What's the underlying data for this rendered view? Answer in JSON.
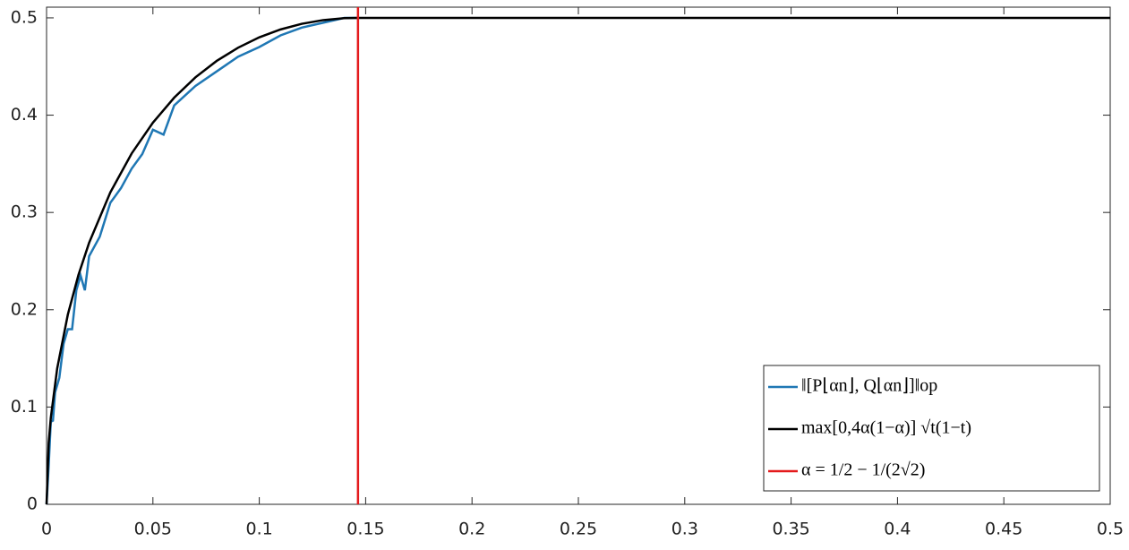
{
  "chart_data": {
    "type": "line",
    "xlim": [
      0,
      0.5
    ],
    "ylim": [
      0,
      0.511
    ],
    "xticks": [
      0,
      0.05,
      0.1,
      0.15,
      0.2,
      0.25,
      0.3,
      0.35,
      0.4,
      0.45,
      0.5
    ],
    "yticks": [
      0,
      0.1,
      0.2,
      0.3,
      0.4,
      0.5
    ],
    "legend": "lower-right",
    "series": [
      {
        "name": "‖[P⌊αn⌋, Q⌊αn⌋]‖op",
        "color": "#1f77b4",
        "x": [
          0,
          0.001,
          0.002,
          0.003,
          0.004,
          0.006,
          0.008,
          0.01,
          0.012,
          0.014,
          0.016,
          0.018,
          0.02,
          0.025,
          0.03,
          0.035,
          0.04,
          0.045,
          0.05,
          0.055,
          0.06,
          0.065,
          0.07,
          0.08,
          0.09,
          0.1,
          0.11,
          0.12,
          0.13,
          0.14,
          0.1464
        ],
        "values": [
          0,
          0.04,
          0.085,
          0.086,
          0.115,
          0.13,
          0.165,
          0.18,
          0.18,
          0.22,
          0.235,
          0.22,
          0.255,
          0.275,
          0.31,
          0.325,
          0.345,
          0.36,
          0.385,
          0.38,
          0.41,
          0.42,
          0.43,
          0.445,
          0.46,
          0.47,
          0.482,
          0.49,
          0.495,
          0.5,
          0.5
        ]
      },
      {
        "name": "max[0,4α(1−α)] √t(1−t)",
        "color": "#000000",
        "x": [
          0,
          0.001,
          0.002,
          0.005,
          0.01,
          0.015,
          0.02,
          0.03,
          0.04,
          0.05,
          0.06,
          0.07,
          0.08,
          0.09,
          0.1,
          0.11,
          0.12,
          0.13,
          0.14,
          0.1464,
          0.5
        ],
        "values": [
          0,
          0.0631,
          0.089,
          0.1397,
          0.195,
          0.2358,
          0.2688,
          0.3207,
          0.3606,
          0.3923,
          0.418,
          0.4389,
          0.4558,
          0.4693,
          0.48,
          0.4881,
          0.4939,
          0.4977,
          0.4997,
          0.5,
          0.5
        ]
      },
      {
        "name": "α = 1/2 − 1/(2√2)",
        "color": "#e41a1c",
        "x": [
          0.1464,
          0.1464
        ],
        "values": [
          0,
          0.511
        ]
      }
    ]
  }
}
